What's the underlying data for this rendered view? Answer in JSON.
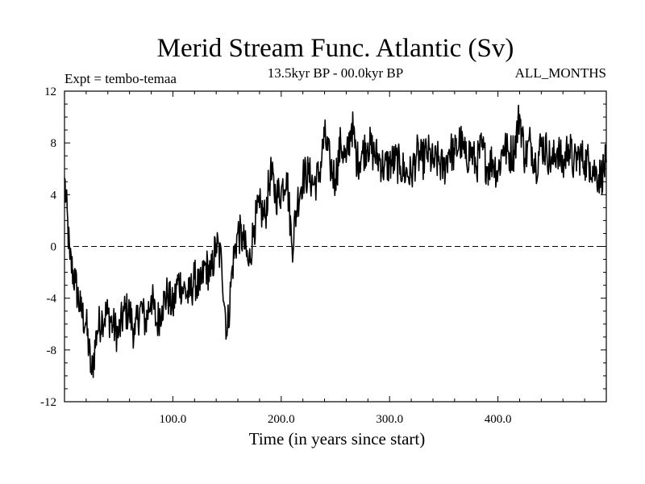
{
  "chart_data": {
    "type": "line",
    "title": "Merid Stream Func. Atlantic (Sv)",
    "subtitle_left": "Expt = tembo-temaa",
    "subtitle_center": "13.5kyr BP - 00.0kyr BP",
    "subtitle_right": "ALL_MONTHS",
    "xlabel": "Time (in years since start)",
    "ylabel": "",
    "xlim": [
      0,
      500
    ],
    "ylim": [
      -12,
      12
    ],
    "x_ticks": [
      100,
      200,
      300,
      400
    ],
    "x_tick_labels": [
      "100.0",
      "200.0",
      "300.0",
      "400.0"
    ],
    "y_ticks": [
      -12,
      -8,
      -4,
      0,
      4,
      8,
      12
    ],
    "y_tick_labels": [
      "-12",
      "-8",
      "-4",
      "0",
      "4",
      "8",
      "12"
    ],
    "reference_line": {
      "y": 0,
      "style": "dashed"
    },
    "series": [
      {
        "name": "Merid Stream Func. Atlantic",
        "x": [
          0,
          5,
          10,
          15,
          20,
          25,
          30,
          35,
          40,
          45,
          50,
          55,
          60,
          65,
          70,
          75,
          80,
          85,
          90,
          95,
          100,
          105,
          110,
          115,
          120,
          125,
          130,
          135,
          140,
          145,
          150,
          155,
          160,
          165,
          170,
          175,
          180,
          185,
          190,
          195,
          200,
          205,
          210,
          215,
          220,
          225,
          230,
          235,
          240,
          245,
          250,
          255,
          260,
          265,
          270,
          275,
          280,
          285,
          290,
          295,
          300,
          305,
          310,
          315,
          320,
          325,
          330,
          335,
          340,
          345,
          350,
          355,
          360,
          365,
          370,
          375,
          380,
          385,
          390,
          395,
          400,
          405,
          410,
          415,
          420,
          425,
          430,
          435,
          440,
          445,
          450,
          455,
          460,
          465,
          470,
          475,
          480,
          485,
          490,
          495,
          500
        ],
        "values": [
          5.3,
          -1.0,
          -2.8,
          -5.0,
          -6.0,
          -9.9,
          -6.5,
          -5.4,
          -5.2,
          -6.2,
          -6.8,
          -5.0,
          -5.1,
          -6.8,
          -4.6,
          -5.9,
          -3.8,
          -6.0,
          -4.6,
          -3.7,
          -4.8,
          -2.6,
          -3.3,
          -3.9,
          -2.5,
          -3.4,
          -1.4,
          -2.3,
          0.2,
          -1.2,
          -6.9,
          -1.5,
          1.1,
          0.5,
          -1.5,
          1.6,
          3.0,
          2.2,
          5.7,
          3.9,
          4.3,
          5.7,
          0.0,
          3.5,
          5.4,
          5.6,
          4.8,
          5.5,
          8.5,
          6.4,
          5.2,
          8.0,
          6.5,
          9.5,
          6.6,
          7.2,
          8.0,
          7.2,
          6.8,
          6.1,
          6.4,
          6.6,
          6.2,
          5.7,
          5.5,
          7.1,
          6.6,
          7.3,
          6.4,
          6.6,
          5.9,
          7.5,
          7.1,
          8.2,
          6.8,
          7.4,
          6.2,
          7.7,
          6.1,
          6.7,
          5.7,
          7.8,
          7.1,
          7.4,
          10.2,
          6.8,
          8.1,
          6.3,
          7.9,
          7.4,
          6.4,
          7.6,
          6.1,
          7.9,
          6.3,
          7.1,
          6.6,
          6.5,
          5.7,
          5.4,
          6.5
        ]
      }
    ]
  }
}
